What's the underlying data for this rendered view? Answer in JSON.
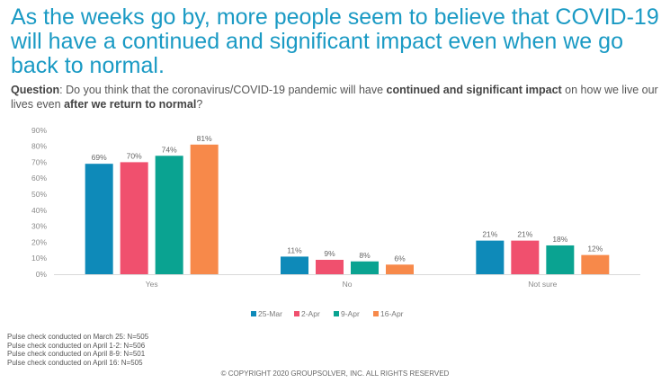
{
  "header": {
    "title": "As the weeks go by, more people seem to believe that COVID-19 will have a continued and significant impact even when we go back to normal."
  },
  "question": {
    "label": "Question",
    "part1": ": Do you think that the coronavirus/COVID-19 pandemic will have ",
    "bold1": "continued and significant impact",
    "part2": " on how we live our lives even ",
    "bold2": "after we return to normal",
    "part3": "?"
  },
  "chart_data": {
    "type": "bar",
    "categories": [
      "Yes",
      "No",
      "Not sure"
    ],
    "series": [
      {
        "name": "25-Mar",
        "color": "#0e8ab9",
        "values": [
          69,
          11,
          21
        ],
        "labels": [
          "69%",
          "11%",
          "21%"
        ]
      },
      {
        "name": "2-Apr",
        "color": "#f0506e",
        "values": [
          70,
          9,
          21
        ],
        "labels": [
          "70%",
          "9%",
          "21%"
        ]
      },
      {
        "name": "9-Apr",
        "color": "#0aa391",
        "values": [
          74,
          8,
          18
        ],
        "labels": [
          "74%",
          "8%",
          "18%"
        ]
      },
      {
        "name": "16-Apr",
        "color": "#f7894a",
        "values": [
          81,
          6,
          12
        ],
        "labels": [
          "81%",
          "6%",
          "12%"
        ]
      }
    ],
    "yticks": [
      "0%",
      "10%",
      "20%",
      "30%",
      "40%",
      "50%",
      "60%",
      "70%",
      "80%",
      "90%"
    ],
    "ylim": [
      0,
      90
    ],
    "grid": false,
    "legend": "bottom-center"
  },
  "notes": [
    "Pulse check conducted on March 25: N=505",
    "Pulse check conducted on April 1-2: N=506",
    "Pulse check conducted on April 8-9: N=501",
    "Pulse check conducted on April 16: N=505"
  ],
  "footer": {
    "copyright": "© COPYRIGHT 2020 GROUPSOLVER, INC. ALL RIGHTS RESERVED"
  }
}
